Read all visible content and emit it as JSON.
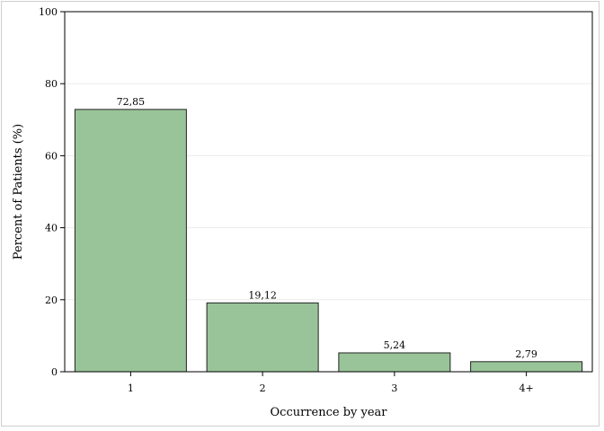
{
  "chart_data": {
    "type": "bar",
    "categories": [
      "1",
      "2",
      "3",
      "4+"
    ],
    "values": [
      72.85,
      19.12,
      5.24,
      2.79
    ],
    "data_labels": [
      "72,85",
      "19,12",
      "5,24",
      "2,79"
    ],
    "xlabel": "Occurrence by year",
    "ylabel": "Percent of Patients (%)",
    "ylim": [
      0,
      100
    ],
    "yticks": [
      0,
      20,
      40,
      60,
      80,
      100
    ],
    "grid": true,
    "bar_color": "#99c499",
    "bar_edge_color": "#222222"
  }
}
